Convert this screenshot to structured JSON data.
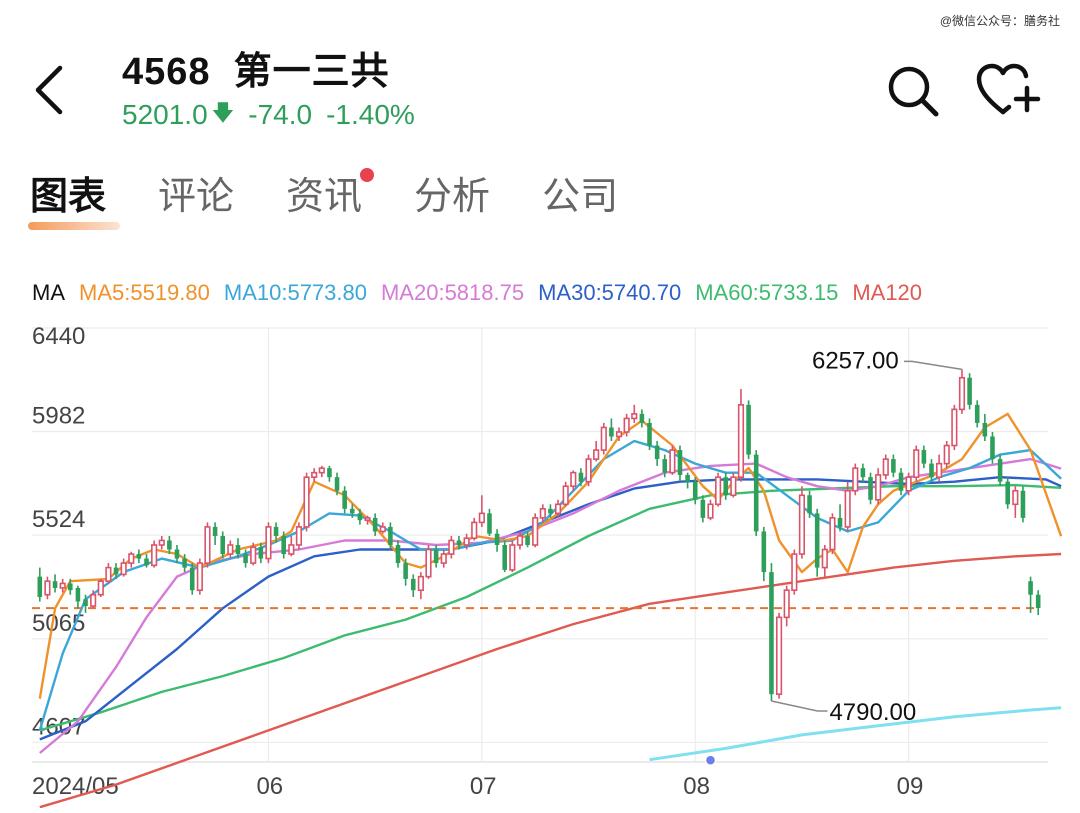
{
  "watermark": "@微信公众号：膳务社",
  "header": {
    "code": "4568",
    "name": "第一三共",
    "price": "5201.0",
    "change": "-74.0",
    "change_pct": "-1.40%",
    "direction_icon": "arrow-down-icon",
    "color_down": "#2e9e5b"
  },
  "tabs": [
    {
      "label": "图表",
      "active": true
    },
    {
      "label": "评论"
    },
    {
      "label": "资讯",
      "badge": true
    },
    {
      "label": "分析"
    },
    {
      "label": "公司"
    }
  ],
  "ma_legend": {
    "prefix": "MA",
    "items": [
      {
        "label": "MA5:5519.80",
        "color": "#f0922b"
      },
      {
        "label": "MA10:5773.80",
        "color": "#3aa7d8"
      },
      {
        "label": "MA20:5818.75",
        "color": "#d67ad8"
      },
      {
        "label": "MA30:5740.70",
        "color": "#2c5fc8"
      },
      {
        "label": "MA60:5733.15",
        "color": "#3dbb6f"
      },
      {
        "label": "MA120",
        "color": "#e05a52"
      }
    ]
  },
  "chart_data": {
    "type": "candlestick",
    "x_ticks": [
      "2024/05",
      "06",
      "07",
      "08",
      "09"
    ],
    "y_ticks": [
      6440,
      5982,
      5524,
      5065,
      4607
    ],
    "ylim": [
      4520,
      6440
    ],
    "grid": true,
    "annotations": [
      {
        "label": "6257.00",
        "value": 6257
      },
      {
        "label": "4790.00",
        "value": 4790
      }
    ],
    "reference_line": {
      "value": 5201,
      "color": "#e8742b"
    },
    "up_color": "#d9546a",
    "down_color": "#2e9e5b",
    "candles": [
      [
        5340,
        5250,
        5380,
        5230
      ],
      [
        5260,
        5320,
        5340,
        5240
      ],
      [
        5320,
        5290,
        5350,
        5270
      ],
      [
        5290,
        5310,
        5330,
        5270
      ],
      [
        5310,
        5280,
        5330,
        5260
      ],
      [
        5290,
        5230,
        5300,
        5200
      ],
      [
        5240,
        5210,
        5260,
        5180
      ],
      [
        5210,
        5260,
        5280,
        5200
      ],
      [
        5260,
        5320,
        5330,
        5250
      ],
      [
        5320,
        5380,
        5400,
        5310
      ],
      [
        5380,
        5350,
        5400,
        5330
      ],
      [
        5350,
        5400,
        5420,
        5340
      ],
      [
        5400,
        5440,
        5450,
        5380
      ],
      [
        5440,
        5420,
        5460,
        5400
      ],
      [
        5420,
        5390,
        5440,
        5380
      ],
      [
        5390,
        5480,
        5500,
        5380
      ],
      [
        5480,
        5500,
        5520,
        5460
      ],
      [
        5500,
        5460,
        5520,
        5440
      ],
      [
        5460,
        5420,
        5480,
        5400
      ],
      [
        5420,
        5380,
        5440,
        5360
      ],
      [
        5380,
        5280,
        5400,
        5260
      ],
      [
        5280,
        5400,
        5420,
        5260
      ],
      [
        5400,
        5560,
        5580,
        5380
      ],
      [
        5560,
        5520,
        5580,
        5480
      ],
      [
        5520,
        5440,
        5540,
        5420
      ],
      [
        5440,
        5480,
        5500,
        5420
      ],
      [
        5480,
        5440,
        5510,
        5420
      ],
      [
        5440,
        5400,
        5460,
        5380
      ],
      [
        5400,
        5470,
        5490,
        5390
      ],
      [
        5470,
        5420,
        5490,
        5400
      ],
      [
        5420,
        5560,
        5580,
        5400
      ],
      [
        5560,
        5520,
        5580,
        5490
      ],
      [
        5520,
        5440,
        5540,
        5420
      ],
      [
        5440,
        5480,
        5520,
        5430
      ],
      [
        5480,
        5560,
        5580,
        5460
      ],
      [
        5560,
        5780,
        5800,
        5540
      ],
      [
        5780,
        5800,
        5820,
        5760
      ],
      [
        5800,
        5820,
        5830,
        5780
      ],
      [
        5820,
        5780,
        5830,
        5760
      ],
      [
        5780,
        5720,
        5800,
        5700
      ],
      [
        5720,
        5640,
        5740,
        5620
      ],
      [
        5640,
        5620,
        5660,
        5600
      ],
      [
        5620,
        5590,
        5640,
        5570
      ],
      [
        5590,
        5600,
        5610,
        5570
      ],
      [
        5600,
        5540,
        5620,
        5520
      ],
      [
        5540,
        5560,
        5580,
        5530
      ],
      [
        5560,
        5480,
        5580,
        5460
      ],
      [
        5480,
        5400,
        5500,
        5380
      ],
      [
        5400,
        5330,
        5420,
        5300
      ],
      [
        5330,
        5280,
        5350,
        5250
      ],
      [
        5280,
        5340,
        5360,
        5240
      ],
      [
        5340,
        5460,
        5480,
        5330
      ],
      [
        5460,
        5400,
        5480,
        5380
      ],
      [
        5400,
        5440,
        5460,
        5380
      ],
      [
        5440,
        5500,
        5520,
        5420
      ],
      [
        5500,
        5480,
        5520,
        5460
      ],
      [
        5480,
        5510,
        5530,
        5460
      ],
      [
        5510,
        5580,
        5600,
        5500
      ],
      [
        5580,
        5620,
        5700,
        5560
      ],
      [
        5620,
        5530,
        5640,
        5520
      ],
      [
        5530,
        5480,
        5550,
        5450
      ],
      [
        5480,
        5370,
        5500,
        5360
      ],
      [
        5370,
        5480,
        5500,
        5360
      ],
      [
        5480,
        5520,
        5540,
        5460
      ],
      [
        5520,
        5480,
        5540,
        5470
      ],
      [
        5480,
        5600,
        5620,
        5470
      ],
      [
        5600,
        5640,
        5660,
        5580
      ],
      [
        5640,
        5620,
        5660,
        5600
      ],
      [
        5620,
        5660,
        5680,
        5600
      ],
      [
        5660,
        5740,
        5760,
        5650
      ],
      [
        5740,
        5800,
        5810,
        5720
      ],
      [
        5800,
        5760,
        5820,
        5740
      ],
      [
        5760,
        5860,
        5880,
        5740
      ],
      [
        5860,
        5900,
        5940,
        5850
      ],
      [
        5900,
        6000,
        6020,
        5880
      ],
      [
        6000,
        5960,
        6040,
        5940
      ],
      [
        5960,
        5980,
        6000,
        5940
      ],
      [
        5980,
        6040,
        6060,
        5960
      ],
      [
        6040,
        6060,
        6100,
        6020
      ],
      [
        6060,
        6020,
        6080,
        6000
      ],
      [
        6020,
        5920,
        6040,
        5900
      ],
      [
        5920,
        5860,
        5940,
        5830
      ],
      [
        5860,
        5800,
        5880,
        5780
      ],
      [
        5800,
        5900,
        5920,
        5790
      ],
      [
        5900,
        5790,
        5920,
        5760
      ],
      [
        5790,
        5760,
        5800,
        5730
      ],
      [
        5760,
        5680,
        5780,
        5660
      ],
      [
        5680,
        5600,
        5700,
        5580
      ],
      [
        5600,
        5660,
        5680,
        5590
      ],
      [
        5660,
        5780,
        5800,
        5650
      ],
      [
        5780,
        5700,
        5800,
        5680
      ],
      [
        5700,
        5780,
        5800,
        5690
      ],
      [
        5780,
        6100,
        6170,
        5760
      ],
      [
        6100,
        5880,
        6120,
        5860
      ],
      [
        5880,
        5540,
        5900,
        5520
      ],
      [
        5540,
        5360,
        5560,
        5320
      ],
      [
        5360,
        4820,
        5400,
        4790
      ],
      [
        4820,
        5160,
        5180,
        4800
      ],
      [
        5160,
        5280,
        5300,
        5120
      ],
      [
        5280,
        5440,
        5460,
        5260
      ],
      [
        5440,
        5700,
        5740,
        5420
      ],
      [
        5700,
        5620,
        5720,
        5600
      ],
      [
        5620,
        5380,
        5640,
        5340
      ],
      [
        5380,
        5460,
        5480,
        5340
      ],
      [
        5460,
        5600,
        5620,
        5440
      ],
      [
        5600,
        5560,
        5660,
        5540
      ],
      [
        5560,
        5720,
        5760,
        5540
      ],
      [
        5720,
        5820,
        5840,
        5700
      ],
      [
        5820,
        5780,
        5840,
        5760
      ],
      [
        5780,
        5680,
        5800,
        5660
      ],
      [
        5680,
        5790,
        5820,
        5660
      ],
      [
        5790,
        5860,
        5880,
        5770
      ],
      [
        5860,
        5800,
        5880,
        5780
      ],
      [
        5800,
        5720,
        5820,
        5700
      ],
      [
        5720,
        5780,
        5800,
        5700
      ],
      [
        5780,
        5900,
        5920,
        5760
      ],
      [
        5900,
        5840,
        5920,
        5820
      ],
      [
        5840,
        5780,
        5860,
        5760
      ],
      [
        5780,
        5840,
        5880,
        5760
      ],
      [
        5840,
        5920,
        5940,
        5820
      ],
      [
        5920,
        6080,
        6100,
        5900
      ],
      [
        6080,
        6220,
        6257,
        6060
      ],
      [
        6220,
        6100,
        6240,
        6080
      ],
      [
        6100,
        6020,
        6120,
        6000
      ],
      [
        6020,
        5960,
        6060,
        5940
      ],
      [
        5960,
        5860,
        5980,
        5840
      ],
      [
        5860,
        5760,
        5880,
        5740
      ],
      [
        5760,
        5660,
        5780,
        5640
      ],
      [
        5660,
        5720,
        5740,
        5600
      ],
      [
        5720,
        5600,
        5740,
        5580
      ],
      [
        5320,
        5260,
        5340,
        5180
      ],
      [
        5260,
        5201,
        5280,
        5170
      ]
    ],
    "ma5": [
      [
        0,
        4800
      ],
      [
        2,
        5200
      ],
      [
        4,
        5320
      ],
      [
        9,
        5330
      ],
      [
        12,
        5420
      ],
      [
        15,
        5460
      ],
      [
        18,
        5440
      ],
      [
        21,
        5380
      ],
      [
        26,
        5460
      ],
      [
        31,
        5500
      ],
      [
        33,
        5540
      ],
      [
        36,
        5760
      ],
      [
        40,
        5700
      ],
      [
        44,
        5560
      ],
      [
        48,
        5400
      ],
      [
        50,
        5380
      ],
      [
        53,
        5430
      ],
      [
        57,
        5520
      ],
      [
        61,
        5500
      ],
      [
        64,
        5520
      ],
      [
        68,
        5620
      ],
      [
        72,
        5760
      ],
      [
        76,
        5960
      ],
      [
        79,
        6030
      ],
      [
        83,
        5920
      ],
      [
        87,
        5740
      ],
      [
        89,
        5680
      ],
      [
        91,
        5760
      ],
      [
        93,
        5820
      ],
      [
        95,
        5720
      ],
      [
        97,
        5500
      ],
      [
        100,
        5360
      ],
      [
        102,
        5420
      ],
      [
        104,
        5460
      ],
      [
        106,
        5360
      ],
      [
        108,
        5560
      ],
      [
        110,
        5660
      ],
      [
        112,
        5720
      ],
      [
        115,
        5760
      ],
      [
        118,
        5800
      ],
      [
        121,
        5860
      ],
      [
        124,
        6000
      ],
      [
        127,
        6060
      ],
      [
        130,
        5900
      ],
      [
        134,
        5519
      ]
    ],
    "ma10": [
      [
        0,
        4660
      ],
      [
        3,
        5000
      ],
      [
        6,
        5240
      ],
      [
        11,
        5360
      ],
      [
        16,
        5420
      ],
      [
        21,
        5380
      ],
      [
        26,
        5430
      ],
      [
        30,
        5480
      ],
      [
        34,
        5540
      ],
      [
        38,
        5620
      ],
      [
        42,
        5610
      ],
      [
        46,
        5540
      ],
      [
        50,
        5460
      ],
      [
        54,
        5460
      ],
      [
        58,
        5490
      ],
      [
        62,
        5500
      ],
      [
        66,
        5580
      ],
      [
        70,
        5720
      ],
      [
        74,
        5860
      ],
      [
        78,
        5940
      ],
      [
        82,
        5900
      ],
      [
        86,
        5840
      ],
      [
        90,
        5800
      ],
      [
        94,
        5800
      ],
      [
        98,
        5700
      ],
      [
        102,
        5600
      ],
      [
        106,
        5540
      ],
      [
        110,
        5580
      ],
      [
        114,
        5720
      ],
      [
        118,
        5780
      ],
      [
        122,
        5820
      ],
      [
        126,
        5880
      ],
      [
        130,
        5900
      ],
      [
        134,
        5773
      ]
    ],
    "ma20": [
      [
        0,
        4560
      ],
      [
        5,
        4700
      ],
      [
        10,
        4940
      ],
      [
        14,
        5160
      ],
      [
        18,
        5340
      ],
      [
        22,
        5400
      ],
      [
        28,
        5440
      ],
      [
        34,
        5460
      ],
      [
        40,
        5500
      ],
      [
        46,
        5500
      ],
      [
        52,
        5480
      ],
      [
        58,
        5490
      ],
      [
        64,
        5540
      ],
      [
        70,
        5620
      ],
      [
        76,
        5720
      ],
      [
        82,
        5800
      ],
      [
        88,
        5830
      ],
      [
        94,
        5840
      ],
      [
        98,
        5780
      ],
      [
        102,
        5740
      ],
      [
        106,
        5720
      ],
      [
        110,
        5740
      ],
      [
        114,
        5780
      ],
      [
        118,
        5800
      ],
      [
        124,
        5830
      ],
      [
        130,
        5860
      ],
      [
        134,
        5818
      ]
    ],
    "ma30": [
      [
        0,
        4620
      ],
      [
        6,
        4700
      ],
      [
        12,
        4860
      ],
      [
        18,
        5020
      ],
      [
        24,
        5200
      ],
      [
        30,
        5340
      ],
      [
        36,
        5430
      ],
      [
        42,
        5460
      ],
      [
        48,
        5460
      ],
      [
        54,
        5460
      ],
      [
        60,
        5500
      ],
      [
        66,
        5580
      ],
      [
        72,
        5660
      ],
      [
        78,
        5730
      ],
      [
        84,
        5760
      ],
      [
        90,
        5770
      ],
      [
        96,
        5770
      ],
      [
        102,
        5770
      ],
      [
        108,
        5760
      ],
      [
        114,
        5750
      ],
      [
        120,
        5760
      ],
      [
        126,
        5780
      ],
      [
        132,
        5770
      ],
      [
        134,
        5740
      ]
    ],
    "ma60": [
      [
        0,
        4660
      ],
      [
        8,
        4740
      ],
      [
        16,
        4830
      ],
      [
        24,
        4900
      ],
      [
        32,
        4980
      ],
      [
        40,
        5080
      ],
      [
        48,
        5150
      ],
      [
        56,
        5250
      ],
      [
        64,
        5380
      ],
      [
        72,
        5520
      ],
      [
        80,
        5640
      ],
      [
        88,
        5700
      ],
      [
        96,
        5720
      ],
      [
        104,
        5730
      ],
      [
        112,
        5740
      ],
      [
        120,
        5740
      ],
      [
        128,
        5745
      ],
      [
        134,
        5733
      ]
    ],
    "ma120": [
      [
        0,
        4320
      ],
      [
        10,
        4420
      ],
      [
        20,
        4540
      ],
      [
        30,
        4660
      ],
      [
        40,
        4780
      ],
      [
        50,
        4900
      ],
      [
        60,
        5020
      ],
      [
        70,
        5130
      ],
      [
        80,
        5220
      ],
      [
        88,
        5260
      ],
      [
        96,
        5300
      ],
      [
        104,
        5340
      ],
      [
        112,
        5380
      ],
      [
        120,
        5410
      ],
      [
        128,
        5430
      ],
      [
        134,
        5440
      ]
    ],
    "extra_line": {
      "color": "#7fe0f0",
      "points": [
        [
          80,
          4530
        ],
        [
          90,
          4580
        ],
        [
          100,
          4640
        ],
        [
          110,
          4680
        ],
        [
          120,
          4720
        ],
        [
          130,
          4750
        ],
        [
          134,
          4760
        ]
      ]
    },
    "marker_point": {
      "index": 88,
      "value": 4528,
      "color": "#6b7fe8"
    }
  }
}
